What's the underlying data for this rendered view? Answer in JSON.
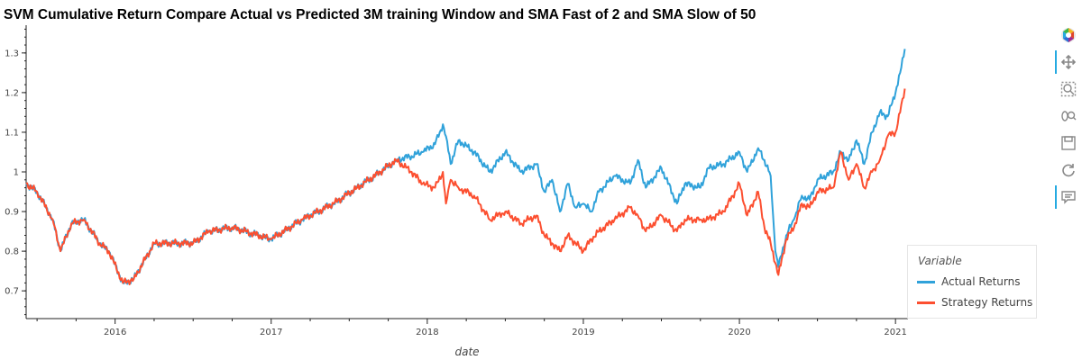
{
  "title": "SVM Cumulative Return Compare Actual vs Predicted 3M training Window and SMA Fast of 2 and SMA Slow of 50",
  "legend": {
    "title": "Variable",
    "items": [
      {
        "label": "Actual Returns",
        "color": "#30a2da"
      },
      {
        "label": "Strategy Returns",
        "color": "#fc4f30"
      }
    ]
  },
  "toolbar": {
    "tools": [
      "bokeh-logo-icon",
      "pan-icon",
      "box-zoom-icon",
      "wheel-zoom-icon",
      "save-icon",
      "reset-icon",
      "hover-icon"
    ]
  },
  "chart_data": {
    "type": "line",
    "title": "SVM Cumulative Return Compare Actual vs Predicted 3M training Window and SMA Fast of 2 and SMA Slow of 50",
    "xlabel": "date",
    "ylabel": "",
    "x_ticks": [
      "2016",
      "2017",
      "2018",
      "2019",
      "2020",
      "2021"
    ],
    "y_ticks": [
      "0.7",
      "0.8",
      "0.9",
      "1",
      "1.1",
      "1.2",
      "1.3"
    ],
    "xlim": [
      2015.43,
      2021.08
    ],
    "ylim": [
      0.63,
      1.37
    ],
    "grid": false,
    "legend_position": "bottom-right",
    "series": [
      {
        "name": "Actual Returns",
        "color": "#30a2da",
        "x": [
          2015.43,
          2015.5,
          2015.6,
          2015.65,
          2015.72,
          2015.8,
          2015.9,
          2015.96,
          2016.05,
          2016.12,
          2016.25,
          2016.5,
          2016.6,
          2016.75,
          2017.0,
          2017.2,
          2017.4,
          2017.55,
          2017.7,
          2017.8,
          2017.9,
          2017.97,
          2018.05,
          2018.08,
          2018.1,
          2018.12,
          2018.15,
          2018.2,
          2018.3,
          2018.4,
          2018.5,
          2018.6,
          2018.7,
          2018.75,
          2018.8,
          2018.85,
          2018.9,
          2018.95,
          2019.0,
          2019.05,
          2019.1,
          2019.2,
          2019.3,
          2019.35,
          2019.4,
          2019.5,
          2019.6,
          2019.65,
          2019.75,
          2019.8,
          2019.9,
          2020.0,
          2020.05,
          2020.12,
          2020.16,
          2020.2,
          2020.23,
          2020.25,
          2020.3,
          2020.35,
          2020.4,
          2020.45,
          2020.5,
          2020.6,
          2020.65,
          2020.7,
          2020.75,
          2020.8,
          2020.85,
          2020.9,
          2020.95,
          2021.0,
          2021.03,
          2021.06
        ],
        "values": [
          0.97,
          0.95,
          0.88,
          0.8,
          0.87,
          0.88,
          0.82,
          0.8,
          0.72,
          0.73,
          0.82,
          0.82,
          0.85,
          0.86,
          0.83,
          0.88,
          0.92,
          0.96,
          1.0,
          1.03,
          1.04,
          1.05,
          1.07,
          1.1,
          1.12,
          1.09,
          1.02,
          1.08,
          1.05,
          1.0,
          1.05,
          1.0,
          1.02,
          0.95,
          0.98,
          0.9,
          0.97,
          0.91,
          0.92,
          0.9,
          0.95,
          0.99,
          0.97,
          1.03,
          0.96,
          1.01,
          0.92,
          0.97,
          0.96,
          1.01,
          1.02,
          1.05,
          1.0,
          1.06,
          1.03,
          0.99,
          0.8,
          0.76,
          0.84,
          0.88,
          0.94,
          0.93,
          0.98,
          1.0,
          1.05,
          1.03,
          1.08,
          1.02,
          1.1,
          1.15,
          1.14,
          1.2,
          1.25,
          1.31
        ]
      },
      {
        "name": "Strategy Returns",
        "color": "#fc4f30",
        "x": [
          2015.43,
          2015.5,
          2015.6,
          2015.65,
          2015.72,
          2015.8,
          2015.9,
          2015.96,
          2016.05,
          2016.12,
          2016.25,
          2016.5,
          2016.6,
          2016.75,
          2017.0,
          2017.2,
          2017.4,
          2017.55,
          2017.7,
          2017.8,
          2017.9,
          2017.97,
          2018.05,
          2018.1,
          2018.12,
          2018.15,
          2018.2,
          2018.3,
          2018.4,
          2018.5,
          2018.6,
          2018.7,
          2018.75,
          2018.8,
          2018.85,
          2018.9,
          2018.95,
          2019.0,
          2019.05,
          2019.1,
          2019.2,
          2019.3,
          2019.35,
          2019.4,
          2019.5,
          2019.6,
          2019.65,
          2019.75,
          2019.8,
          2019.9,
          2020.0,
          2020.05,
          2020.12,
          2020.16,
          2020.2,
          2020.23,
          2020.25,
          2020.3,
          2020.35,
          2020.4,
          2020.45,
          2020.5,
          2020.6,
          2020.65,
          2020.7,
          2020.75,
          2020.8,
          2020.85,
          2020.9,
          2020.95,
          2021.0,
          2021.03,
          2021.06
        ],
        "values": [
          0.97,
          0.95,
          0.88,
          0.8,
          0.87,
          0.88,
          0.82,
          0.8,
          0.72,
          0.73,
          0.82,
          0.82,
          0.85,
          0.86,
          0.83,
          0.88,
          0.92,
          0.96,
          1.0,
          1.03,
          1.0,
          0.97,
          0.96,
          1.0,
          0.92,
          0.98,
          0.96,
          0.94,
          0.88,
          0.9,
          0.87,
          0.89,
          0.84,
          0.82,
          0.8,
          0.84,
          0.82,
          0.8,
          0.83,
          0.85,
          0.88,
          0.91,
          0.89,
          0.85,
          0.89,
          0.85,
          0.88,
          0.88,
          0.88,
          0.9,
          0.97,
          0.89,
          0.95,
          0.86,
          0.82,
          0.77,
          0.74,
          0.83,
          0.86,
          0.92,
          0.91,
          0.95,
          0.96,
          1.05,
          0.98,
          1.02,
          0.96,
          1.0,
          1.03,
          1.09,
          1.1,
          1.15,
          1.21
        ]
      }
    ]
  }
}
